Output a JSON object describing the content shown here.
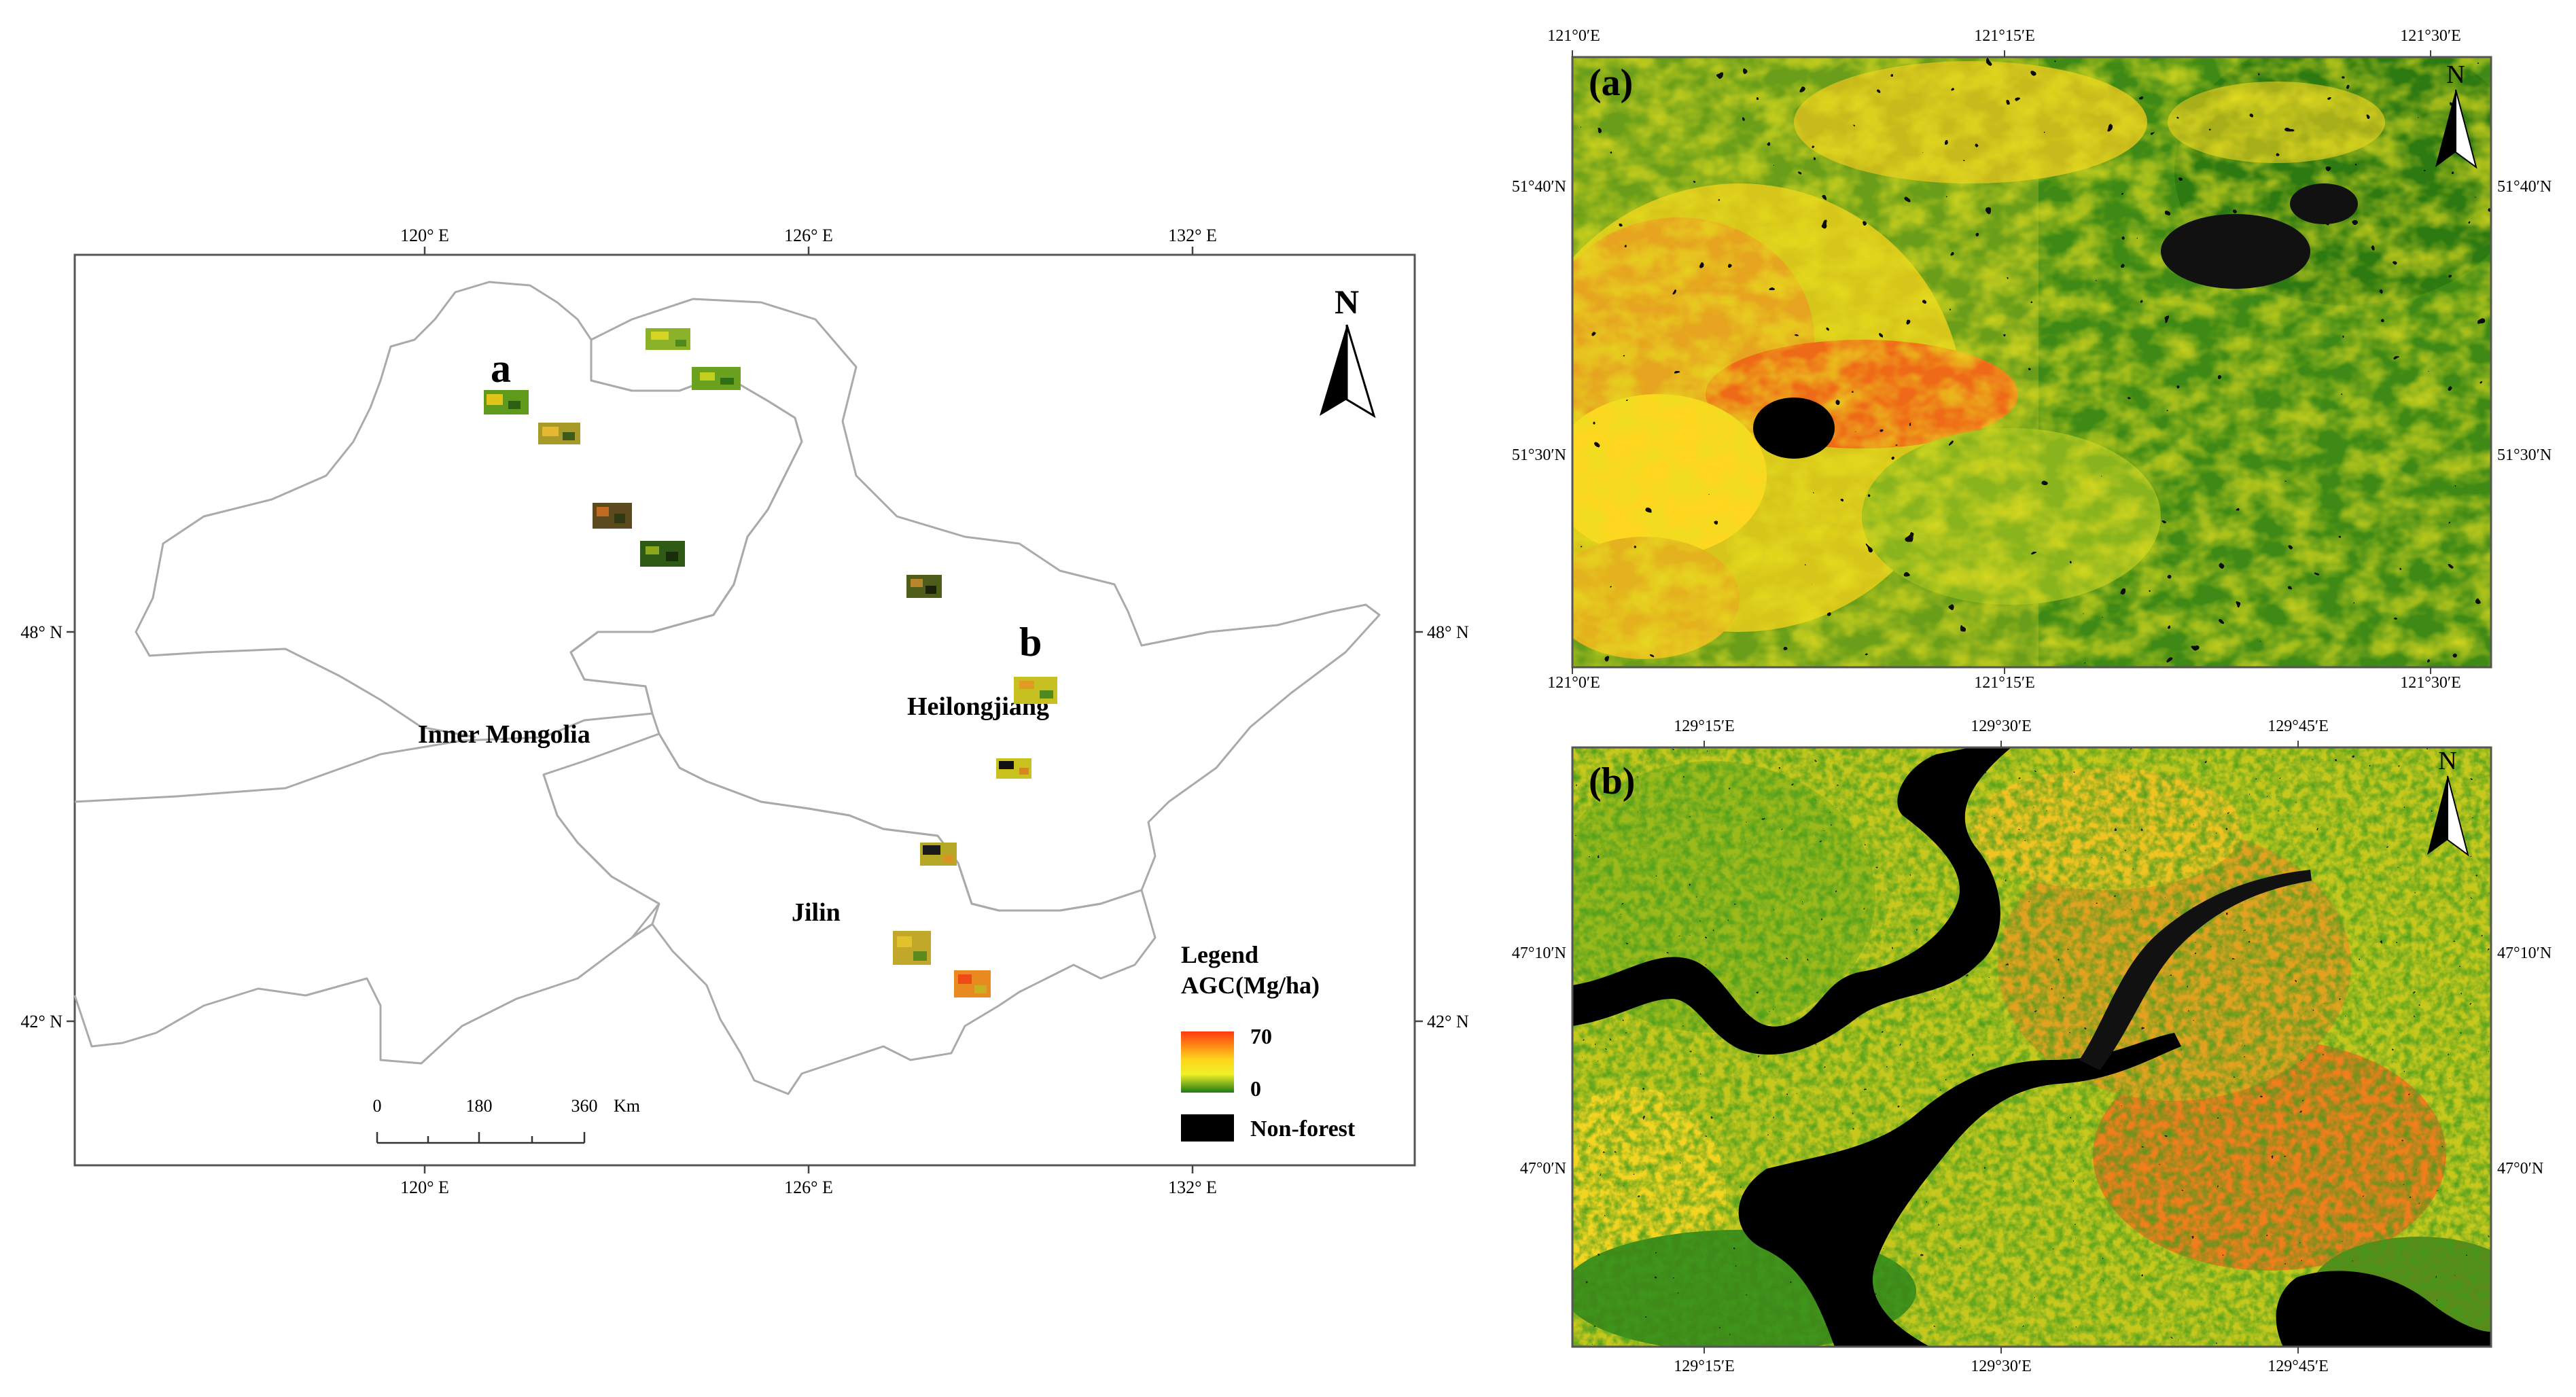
{
  "overview_map": {
    "top_ticks": [
      "120° E",
      "126° E",
      "132° E"
    ],
    "bottom_ticks": [
      "120° E",
      "126° E",
      "132° E"
    ],
    "left_ticks": [
      "48° N",
      "42° N"
    ],
    "right_ticks": [
      "48° N",
      "42° N"
    ],
    "site_labels": [
      "a",
      "b"
    ],
    "province_labels": [
      "Inner Mongolia",
      "Heilongjiang",
      "Jilin"
    ],
    "north_label": "N",
    "scalebar": {
      "ticks": [
        "0",
        "180",
        "360"
      ],
      "unit": "Km"
    },
    "legend": {
      "title": "Legend",
      "subtitle": "AGC(Mg/ha)",
      "max": "70",
      "min": "0",
      "nonforest": "Non-forest",
      "gradient_colors": [
        "#ff3a10",
        "#ffd21a",
        "#f0f026",
        "#1e7a14"
      ],
      "nonforest_color": "#000000"
    },
    "sites_count": 12
  },
  "panel_a": {
    "label": "(a)",
    "north_label": "N",
    "top_ticks": [
      "121°0′E",
      "121°15′E",
      "121°30′E"
    ],
    "bottom_ticks": [
      "121°0′E",
      "121°15′E",
      "121°30′E"
    ],
    "left_ticks": [
      "51°40′N",
      "51°30′N"
    ],
    "right_ticks": [
      "51°40′N",
      "51°30′N"
    ]
  },
  "panel_b": {
    "label": "(b)",
    "north_label": "N",
    "top_ticks": [
      "129°15′E",
      "129°30′E",
      "129°45′E"
    ],
    "bottom_ticks": [
      "129°15′E",
      "129°30′E",
      "129°45′E"
    ],
    "left_ticks": [
      "47°10′N",
      "47°0′N"
    ],
    "right_ticks": [
      "47°10′N",
      "47°0′N"
    ]
  }
}
